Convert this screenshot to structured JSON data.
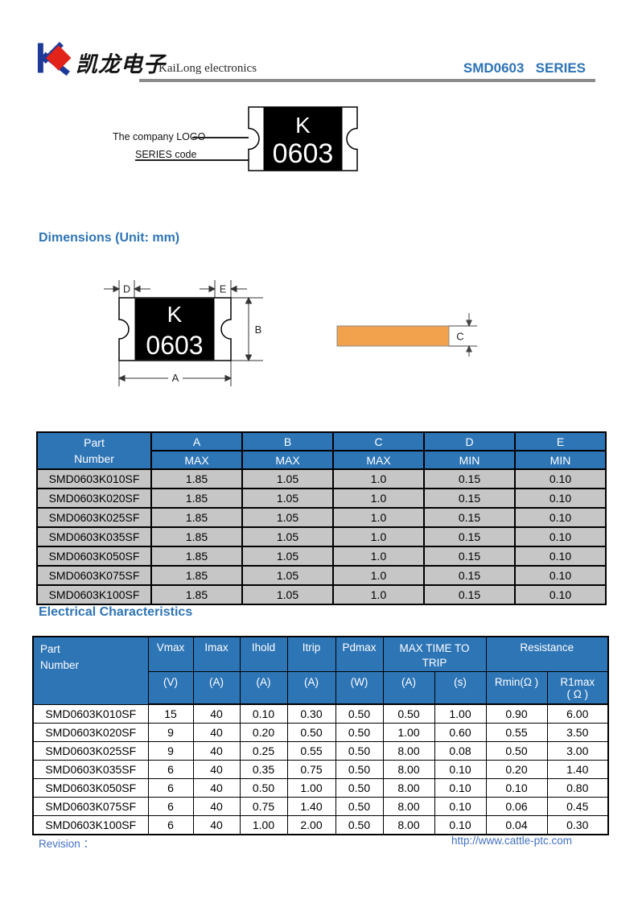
{
  "header": {
    "company_chinese": "凯龙电子",
    "company_english": "KaiLong electronics",
    "series_title": "SMD0603   SERIES"
  },
  "chip_figure": {
    "logo_pointer_label": "The company LOGO",
    "series_pointer_label": "SERIES code",
    "chip_mark": "K",
    "chip_code": "0603"
  },
  "dimensions_section": {
    "title": "Dimensions (Unit: mm)",
    "figure": {
      "chip_mark": "K",
      "chip_code": "0603",
      "label_a": "A",
      "label_b": "B",
      "label_c": "C",
      "label_d": "D",
      "label_e": "E"
    },
    "table": {
      "part_header": [
        "Part",
        "Number"
      ],
      "columns": [
        {
          "name": "A",
          "limit": "MAX"
        },
        {
          "name": "B",
          "limit": "MAX"
        },
        {
          "name": "C",
          "limit": "MAX"
        },
        {
          "name": "D",
          "limit": "MIN"
        },
        {
          "name": "E",
          "limit": "MIN"
        }
      ],
      "rows": [
        [
          "SMD0603K010SF",
          "1.85",
          "1.05",
          "1.0",
          "0.15",
          "0.10"
        ],
        [
          "SMD0603K020SF",
          "1.85",
          "1.05",
          "1.0",
          "0.15",
          "0.10"
        ],
        [
          "SMD0603K025SF",
          "1.85",
          "1.05",
          "1.0",
          "0.15",
          "0.10"
        ],
        [
          "SMD0603K035SF",
          "1.85",
          "1.05",
          "1.0",
          "0.15",
          "0.10"
        ],
        [
          "SMD0603K050SF",
          "1.85",
          "1.05",
          "1.0",
          "0.15",
          "0.10"
        ],
        [
          "SMD0603K075SF",
          "1.85",
          "1.05",
          "1.0",
          "0.15",
          "0.10"
        ],
        [
          "SMD0603K100SF",
          "1.85",
          "1.05",
          "1.0",
          "0.15",
          "0.10"
        ]
      ]
    }
  },
  "electrical_section": {
    "title": "Electrical Characteristics",
    "table": {
      "part_header": [
        "Part",
        "Number"
      ],
      "top_headers": [
        "Vmax",
        "Imax",
        "Ihold",
        "Itrip",
        "Pdmax"
      ],
      "group_headers": {
        "max_time_to_trip": "MAX TIME TO TRIP",
        "resistance": "Resistance"
      },
      "unit_headers": [
        "(V)",
        "(A)",
        "(A)",
        "(A)",
        "(W)",
        "(A)",
        "(s)"
      ],
      "resistance_units": {
        "rmin": "Rmin(Ω )",
        "r1max_line1": "R1max",
        "r1max_line2": "( Ω )"
      },
      "rows": [
        [
          "SMD0603K010SF",
          "15",
          "40",
          "0.10",
          "0.30",
          "0.50",
          "0.50",
          "1.00",
          "0.90",
          "6.00"
        ],
        [
          "SMD0603K020SF",
          "9",
          "40",
          "0.20",
          "0.50",
          "0.50",
          "1.00",
          "0.60",
          "0.55",
          "3.50"
        ],
        [
          "SMD0603K025SF",
          "9",
          "40",
          "0.25",
          "0.55",
          "0.50",
          "8.00",
          "0.08",
          "0.50",
          "3.00"
        ],
        [
          "SMD0603K035SF",
          "6",
          "40",
          "0.35",
          "0.75",
          "0.50",
          "8.00",
          "0.10",
          "0.20",
          "1.40"
        ],
        [
          "SMD0603K050SF",
          "6",
          "40",
          "0.50",
          "1.00",
          "0.50",
          "8.00",
          "0.10",
          "0.10",
          "0.80"
        ],
        [
          "SMD0603K075SF",
          "6",
          "40",
          "0.75",
          "1.40",
          "0.50",
          "8.00",
          "0.10",
          "0.06",
          "0.45"
        ],
        [
          "SMD0603K100SF",
          "6",
          "40",
          "1.00",
          "2.00",
          "0.50",
          "8.00",
          "0.10",
          "0.04",
          "0.30"
        ]
      ]
    }
  },
  "footer": {
    "revision_label": "Revision ：",
    "url": "http://www.cattle-ptc.com"
  },
  "colors": {
    "table_header_blue": "#2E75B6",
    "heading_blue": "#2E74B5",
    "row_gray": "#C6C6C6",
    "footer_blue": "#4472C4",
    "chip_body_black": "#000000",
    "side_view_orange": "#F2A24D",
    "logo_blue": "#1E3A99",
    "logo_red": "#E2231A",
    "header_rule_gray": "#8C8C8C"
  }
}
